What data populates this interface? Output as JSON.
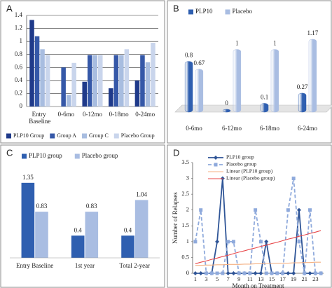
{
  "chart_data": [
    {
      "type": "bar",
      "panel": "A",
      "categories": [
        "Entry Baseline",
        "0-6mo",
        "0-12mo",
        "0-18mo",
        "0-24mo"
      ],
      "series": [
        {
          "name": "PLP10 Group",
          "color": "#1f3a8a",
          "values": [
            1.33,
            0,
            0.38,
            0.28,
            0.4
          ]
        },
        {
          "name": "Group A",
          "color": "#3558a8",
          "values": [
            1.08,
            0.6,
            0.79,
            0.79,
            0.79
          ]
        },
        {
          "name": "Group C",
          "color": "#a8bde0",
          "values": [
            0.88,
            0.18,
            0.79,
            0.79,
            0.68
          ]
        },
        {
          "name": "Placebo Group",
          "color": "#c9d5ec",
          "values": [
            0.79,
            0.67,
            0.79,
            0.88,
            0.98
          ]
        }
      ],
      "ylim": [
        0,
        1.4
      ],
      "yticks": [
        0,
        0.2,
        0.4,
        0.6,
        0.8,
        1,
        1.2,
        1.4
      ],
      "grid": true,
      "legend": "bottom"
    },
    {
      "type": "bar3d",
      "panel": "B",
      "categories": [
        "0-6mo",
        "6-12mo",
        "6-18mo",
        "6-24mo"
      ],
      "series": [
        {
          "name": "PLP10",
          "color": "#2f5fb0",
          "values": [
            0.8,
            0,
            0.1,
            0.27
          ]
        },
        {
          "name": "Placebo",
          "color": "#a9bde2",
          "values": [
            0.67,
            1,
            1,
            1.17
          ]
        }
      ],
      "data_labels": true,
      "legend": "top"
    },
    {
      "type": "bar",
      "panel": "C",
      "categories": [
        "Entry Baseline",
        "1st year",
        "Total 2-year"
      ],
      "series": [
        {
          "name": "PLP10 group",
          "color": "#2f5fb0",
          "values": [
            1.35,
            0.4,
            0.4
          ]
        },
        {
          "name": "Placebo group",
          "color": "#a9bde2",
          "values": [
            0.83,
            0.83,
            1.04
          ]
        }
      ],
      "data_labels": true,
      "legend": "top"
    },
    {
      "type": "line",
      "panel": "D",
      "x": [
        1,
        2,
        3,
        4,
        5,
        6,
        7,
        8,
        9,
        10,
        11,
        12,
        13,
        14,
        15,
        16,
        17,
        18,
        19,
        20,
        21,
        22,
        23,
        24
      ],
      "xlim": [
        0.5,
        24.5
      ],
      "xticks": [
        1,
        3,
        5,
        7,
        9,
        11,
        13,
        15,
        17,
        19,
        21,
        23
      ],
      "ylim": [
        0,
        3.5
      ],
      "yticks": [
        0,
        0.5,
        1,
        1.5,
        2,
        2.5,
        3,
        3.5
      ],
      "xlabel": "Month on Treatment",
      "ylabel": "Number of Relapses",
      "legend": "top-left",
      "series": [
        {
          "name": "PLP10 group",
          "color": "#2f5597",
          "marker": "diamond",
          "dash": false,
          "values": [
            0,
            0,
            0,
            0,
            1,
            3,
            0,
            0,
            0,
            0,
            0,
            0,
            0,
            1,
            0,
            0,
            0,
            0,
            0,
            2,
            0,
            0,
            0,
            0
          ]
        },
        {
          "name": "Placebo group",
          "color": "#8faadc",
          "marker": "square",
          "dash": true,
          "values": [
            1,
            2,
            0,
            0,
            0,
            0,
            1,
            1,
            0,
            0,
            0,
            2,
            1,
            0,
            0,
            0,
            0,
            2,
            3,
            1,
            0,
            2,
            0,
            0
          ]
        },
        {
          "name": "Linear (PLP10 group)",
          "color": "#f4b183",
          "marker": null,
          "dash": false,
          "values": [
            0.25,
            0.25,
            0.26,
            0.26,
            0.27,
            0.27,
            0.28,
            0.28,
            0.28,
            0.29,
            0.29,
            0.3,
            0.3,
            0.31,
            0.31,
            0.32,
            0.32,
            0.32,
            0.33,
            0.33,
            0.34,
            0.34,
            0.35,
            0.35
          ]
        },
        {
          "name": "Linear (Placebo group)",
          "color": "#e8474a",
          "marker": null,
          "dash": false,
          "values": [
            0.3,
            0.35,
            0.39,
            0.44,
            0.48,
            0.53,
            0.57,
            0.62,
            0.67,
            0.71,
            0.76,
            0.8,
            0.85,
            0.89,
            0.94,
            0.98,
            1.03,
            1.08,
            1.12,
            1.17,
            1.21,
            1.26,
            1.3,
            1.35
          ]
        }
      ]
    }
  ]
}
